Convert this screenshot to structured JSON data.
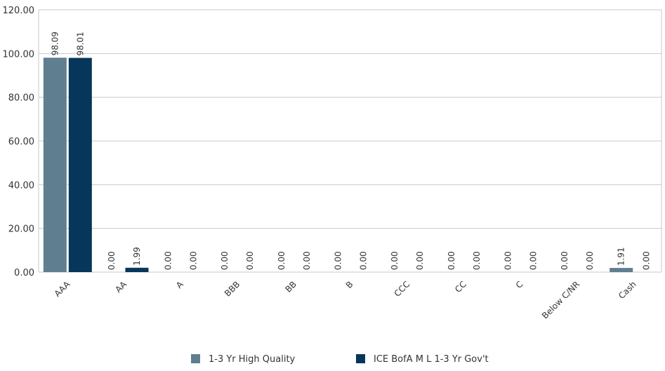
{
  "chart_data": {
    "type": "bar",
    "categories": [
      "AAA",
      "AA",
      "A",
      "BBB",
      "BB",
      "B",
      "CCC",
      "CC",
      "C",
      "Below C/NR",
      "Cash"
    ],
    "series": [
      {
        "name": "1-3 Yr High Quality",
        "color": "#5f7f91",
        "values": [
          98.09,
          0.0,
          0.0,
          0.0,
          0.0,
          0.0,
          0.0,
          0.0,
          0.0,
          0.0,
          1.91
        ],
        "labels": [
          "98.09",
          "0.00",
          "0.00",
          "0.00",
          "0.00",
          "0.00",
          "0.00",
          "0.00",
          "0.00",
          "0.00",
          "1.91"
        ]
      },
      {
        "name": "ICE BofA M L 1-3 Yr Gov't",
        "color": "#06365a",
        "values": [
          98.01,
          1.99,
          0.0,
          0.0,
          0.0,
          0.0,
          0.0,
          0.0,
          0.0,
          0.0,
          0.0
        ],
        "labels": [
          "98.01",
          "1.99",
          "0.00",
          "0.00",
          "0.00",
          "0.00",
          "0.00",
          "0.00",
          "0.00",
          "0.00",
          "0.00"
        ]
      }
    ],
    "yticks": [
      "0.00",
      "20.00",
      "40.00",
      "60.00",
      "80.00",
      "100.00",
      "120.00"
    ],
    "ylim": [
      0,
      120
    ],
    "grid": true,
    "legend": "bottom-center",
    "title": "",
    "xlabel": "",
    "ylabel": ""
  }
}
